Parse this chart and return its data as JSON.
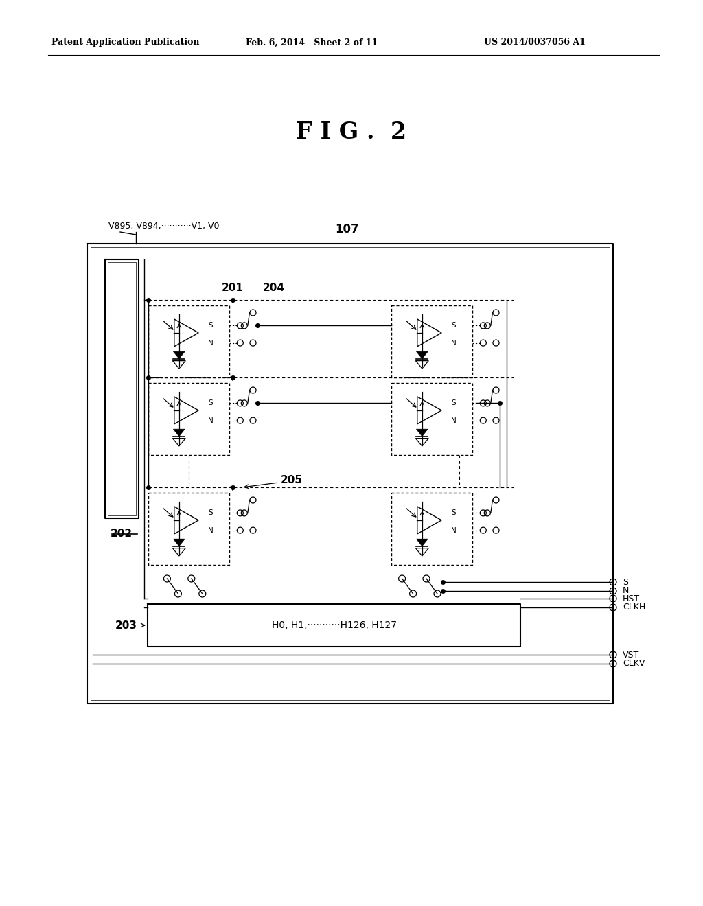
{
  "title": "F I G .  2",
  "header_left": "Patent Application Publication",
  "header_mid": "Feb. 6, 2014   Sheet 2 of 11",
  "header_right": "US 2014/0037056 A1",
  "bg_color": "#ffffff",
  "label_107": "107",
  "label_201": "201",
  "label_202": "202",
  "label_203": "203",
  "label_204": "204",
  "label_205": "205",
  "label_v": "V895, V894,···········V1, V0",
  "label_h": "H0, H1,···········H126, H127",
  "out_labels": [
    "S",
    "N",
    "HST",
    "CLKH",
    "VST",
    "CLKV"
  ]
}
